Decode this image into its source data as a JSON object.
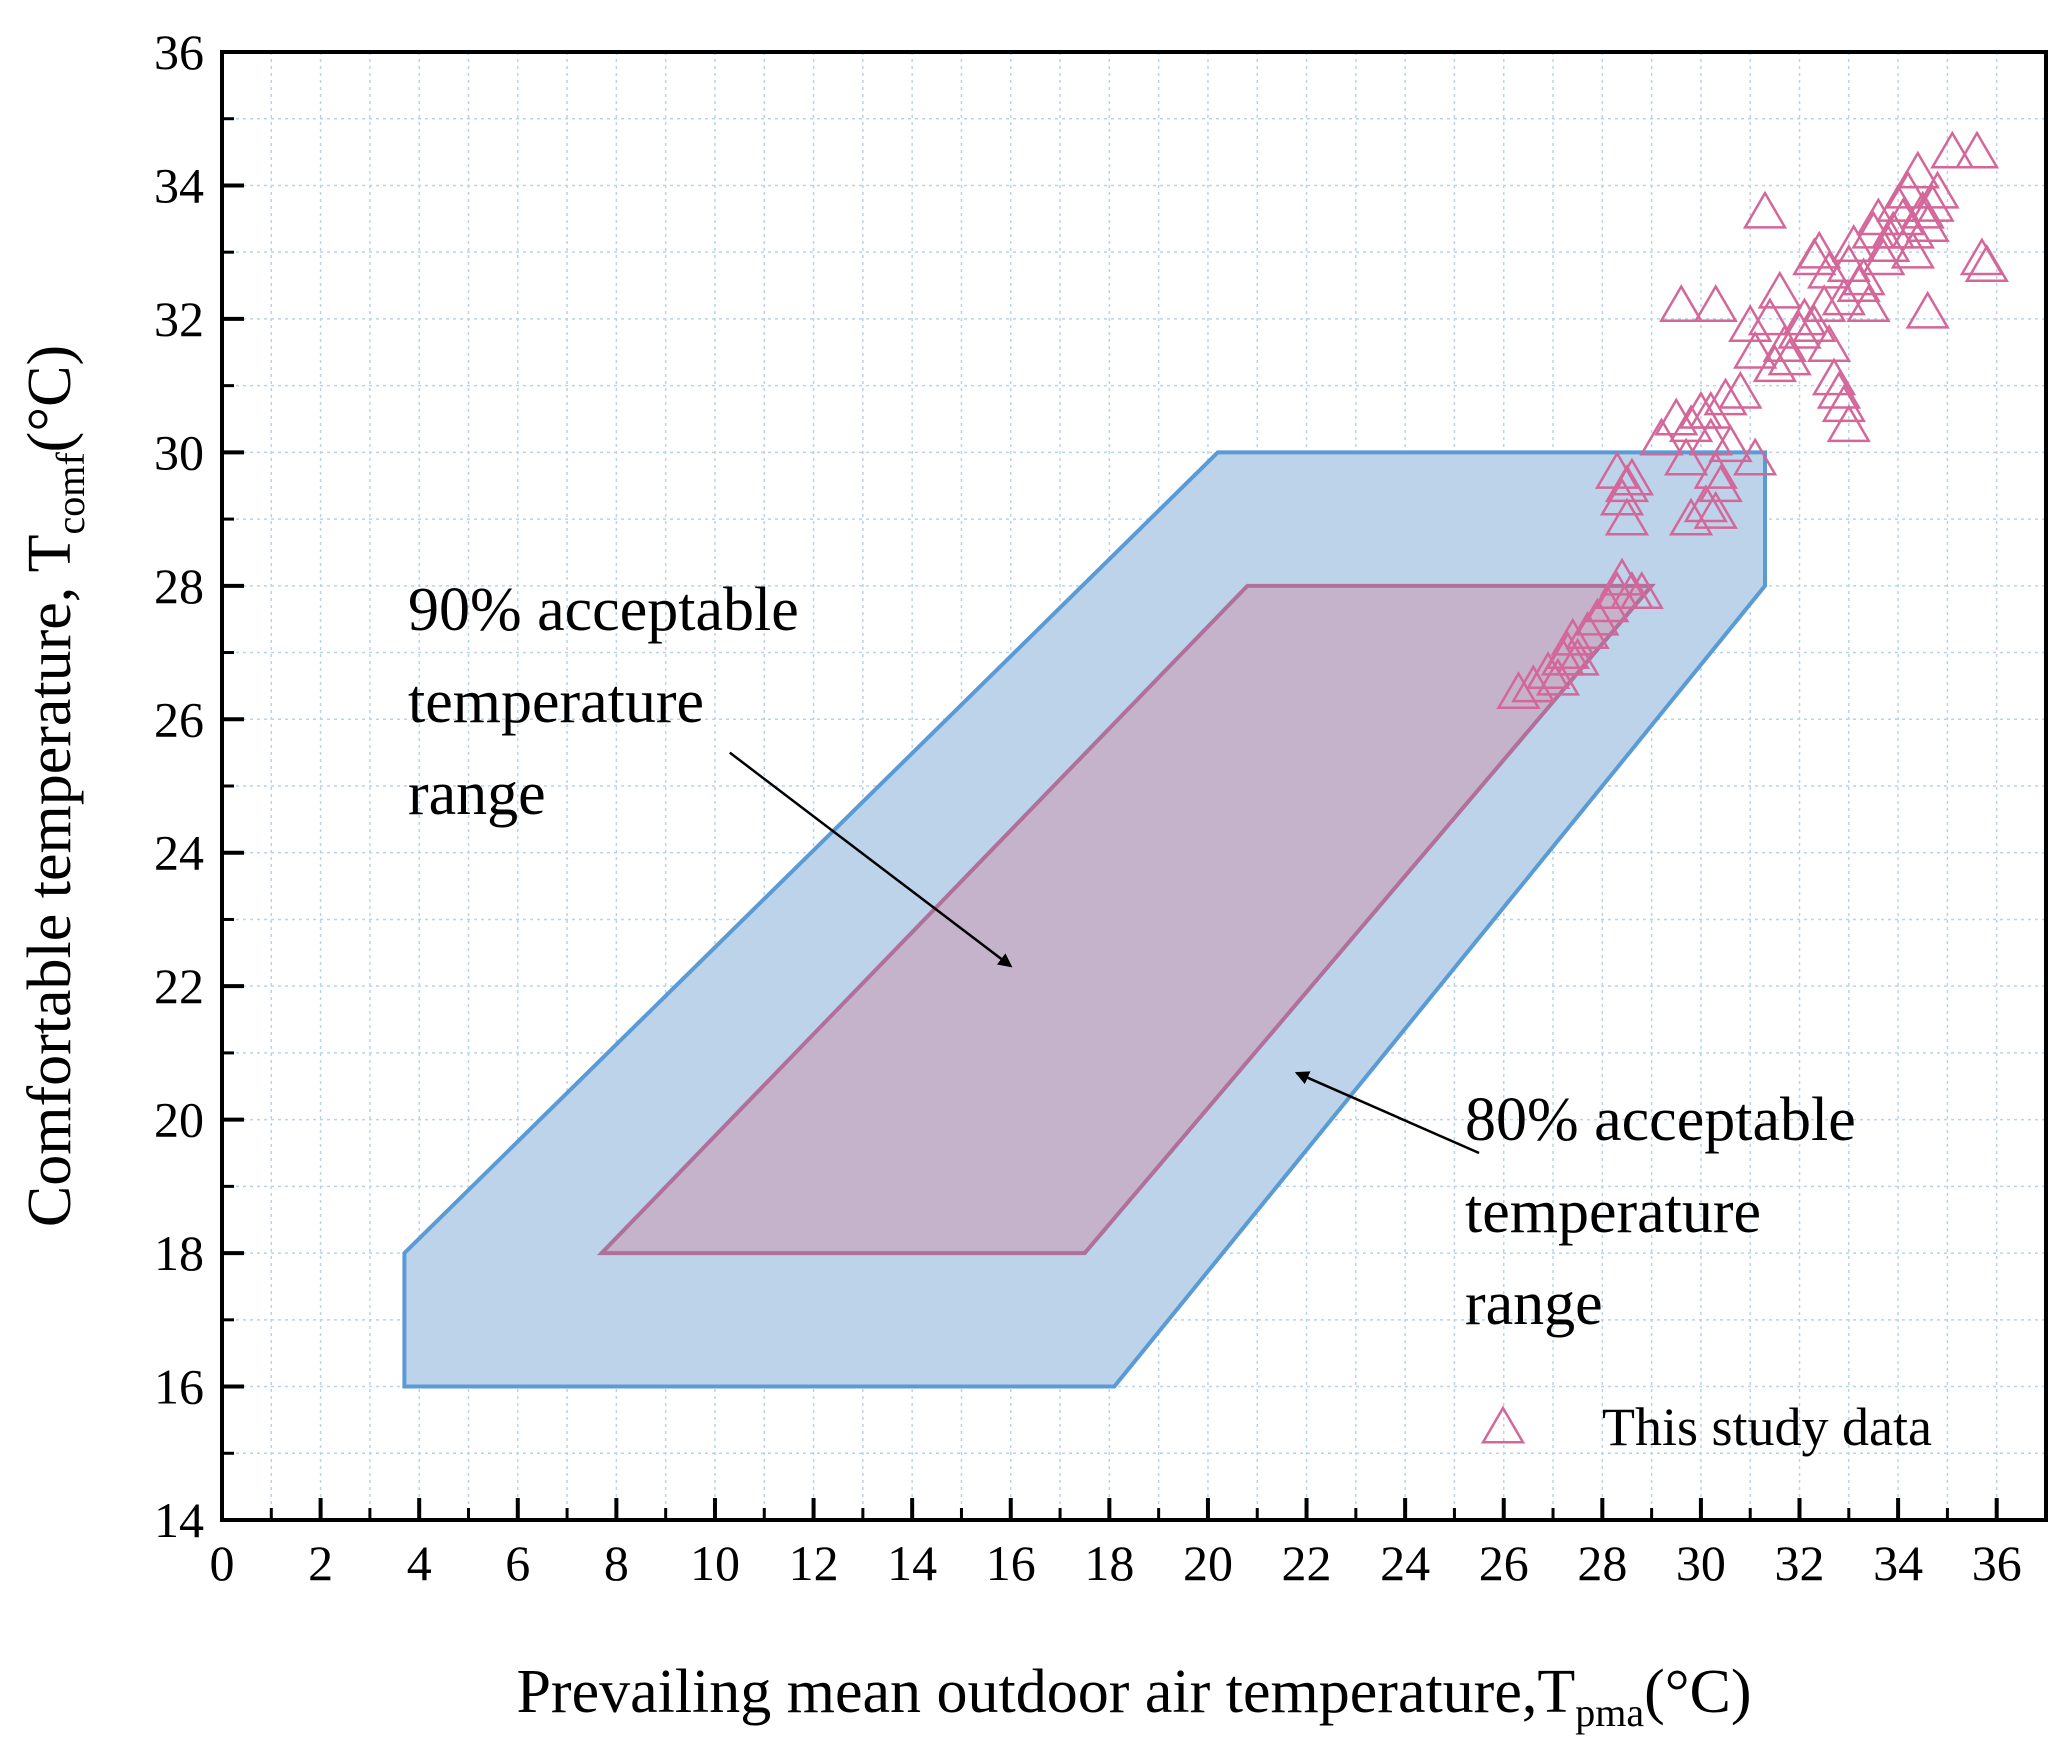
{
  "chart_data": {
    "type": "scatter",
    "xlabel": "Prevailing mean outdoor air temperature,T",
    "xlabel_sub": "pma",
    "xlabel_unit": "(°C)",
    "ylabel": "Comfortable temperature, T",
    "ylabel_sub": "comf",
    "ylabel_unit": "(°C)",
    "xlim": [
      0,
      37
    ],
    "ylim": [
      14,
      36
    ],
    "xticks": [
      0,
      2,
      4,
      6,
      8,
      10,
      12,
      14,
      16,
      18,
      20,
      22,
      24,
      26,
      28,
      30,
      32,
      34,
      36
    ],
    "yticks": [
      14,
      16,
      18,
      20,
      22,
      24,
      26,
      28,
      30,
      32,
      34,
      36
    ],
    "grid": true,
    "regions": [
      {
        "label_lines": [
          "80% acceptable",
          "temperature",
          "range"
        ],
        "fill": "#bcd3ea",
        "stroke": "#5b9bd5",
        "polygon": [
          [
            3.7,
            16
          ],
          [
            18.1,
            16
          ],
          [
            31.3,
            28
          ],
          [
            31.3,
            30
          ],
          [
            20.2,
            30
          ],
          [
            3.7,
            18
          ]
        ]
      },
      {
        "label_lines": [
          "90% acceptable",
          "temperature",
          "range"
        ],
        "fill": "#c4b3cb",
        "stroke": "#b0709a",
        "polygon": [
          [
            7.7,
            18
          ],
          [
            17.5,
            18
          ],
          [
            29.0,
            28
          ],
          [
            20.8,
            28
          ]
        ]
      }
    ],
    "series": [
      {
        "name": "This study data",
        "marker": "triangle-open",
        "color": "#d4679a",
        "points": [
          [
            26.3,
            26.4
          ],
          [
            26.6,
            26.5
          ],
          [
            26.9,
            26.7
          ],
          [
            27.1,
            26.6
          ],
          [
            27.2,
            26.9
          ],
          [
            27.3,
            27.0
          ],
          [
            27.5,
            26.9
          ],
          [
            27.4,
            27.2
          ],
          [
            27.7,
            27.3
          ],
          [
            27.9,
            27.5
          ],
          [
            28.1,
            27.7
          ],
          [
            28.3,
            27.9
          ],
          [
            28.4,
            28.1
          ],
          [
            28.6,
            27.9
          ],
          [
            28.8,
            27.9
          ],
          [
            28.5,
            29.0
          ],
          [
            28.4,
            29.3
          ],
          [
            28.5,
            29.5
          ],
          [
            28.6,
            29.6
          ],
          [
            28.3,
            29.7
          ],
          [
            29.2,
            30.2
          ],
          [
            29.5,
            30.5
          ],
          [
            29.7,
            29.9
          ],
          [
            29.8,
            30.4
          ],
          [
            30.0,
            30.6
          ],
          [
            30.2,
            30.2
          ],
          [
            30.3,
            29.7
          ],
          [
            30.4,
            29.5
          ],
          [
            29.8,
            29.0
          ],
          [
            30.1,
            29.2
          ],
          [
            30.3,
            29.1
          ],
          [
            30.6,
            30.1
          ],
          [
            30.8,
            30.9
          ],
          [
            31.1,
            29.9
          ],
          [
            30.2,
            30.6
          ],
          [
            30.5,
            30.8
          ],
          [
            29.6,
            32.2
          ],
          [
            30.3,
            32.2
          ],
          [
            31.0,
            31.9
          ],
          [
            31.1,
            31.5
          ],
          [
            31.3,
            33.6
          ],
          [
            31.4,
            32.0
          ],
          [
            31.5,
            31.3
          ],
          [
            31.6,
            32.4
          ],
          [
            31.7,
            31.6
          ],
          [
            31.8,
            31.4
          ],
          [
            32.0,
            31.8
          ],
          [
            32.1,
            32.0
          ],
          [
            32.3,
            31.9
          ],
          [
            32.5,
            32.2
          ],
          [
            32.6,
            32.7
          ],
          [
            32.3,
            32.9
          ],
          [
            32.4,
            33.0
          ],
          [
            32.6,
            31.6
          ],
          [
            32.7,
            31.1
          ],
          [
            32.8,
            30.9
          ],
          [
            32.9,
            30.7
          ],
          [
            33.0,
            30.4
          ],
          [
            32.9,
            32.3
          ],
          [
            33.0,
            32.8
          ],
          [
            33.1,
            33.1
          ],
          [
            33.2,
            32.5
          ],
          [
            33.3,
            32.6
          ],
          [
            33.4,
            32.2
          ],
          [
            33.5,
            33.3
          ],
          [
            33.6,
            33.5
          ],
          [
            33.7,
            32.9
          ],
          [
            33.8,
            33.1
          ],
          [
            33.9,
            33.3
          ],
          [
            34.0,
            33.7
          ],
          [
            34.1,
            33.5
          ],
          [
            34.2,
            33.9
          ],
          [
            34.3,
            33.3
          ],
          [
            34.3,
            33.0
          ],
          [
            34.4,
            34.2
          ],
          [
            34.5,
            33.6
          ],
          [
            34.6,
            33.4
          ],
          [
            34.7,
            33.7
          ],
          [
            34.6,
            32.1
          ],
          [
            34.8,
            33.9
          ],
          [
            35.1,
            34.5
          ],
          [
            35.6,
            34.5
          ],
          [
            35.7,
            32.9
          ],
          [
            35.8,
            32.8
          ]
        ]
      }
    ],
    "annotations": [
      {
        "lines": [
          "90% acceptable",
          "temperature",
          "range"
        ],
        "arrow_from": [
          10.3,
          25.5
        ],
        "arrow_to": [
          16.0,
          22.3
        ]
      },
      {
        "lines": [
          "80% acceptable",
          "temperature",
          "range"
        ],
        "arrow_from": [
          25.5,
          19.5
        ],
        "arrow_to": [
          21.8,
          20.7
        ]
      }
    ],
    "legend": {
      "position": "bottom-right",
      "entries": [
        "This study data"
      ]
    }
  }
}
